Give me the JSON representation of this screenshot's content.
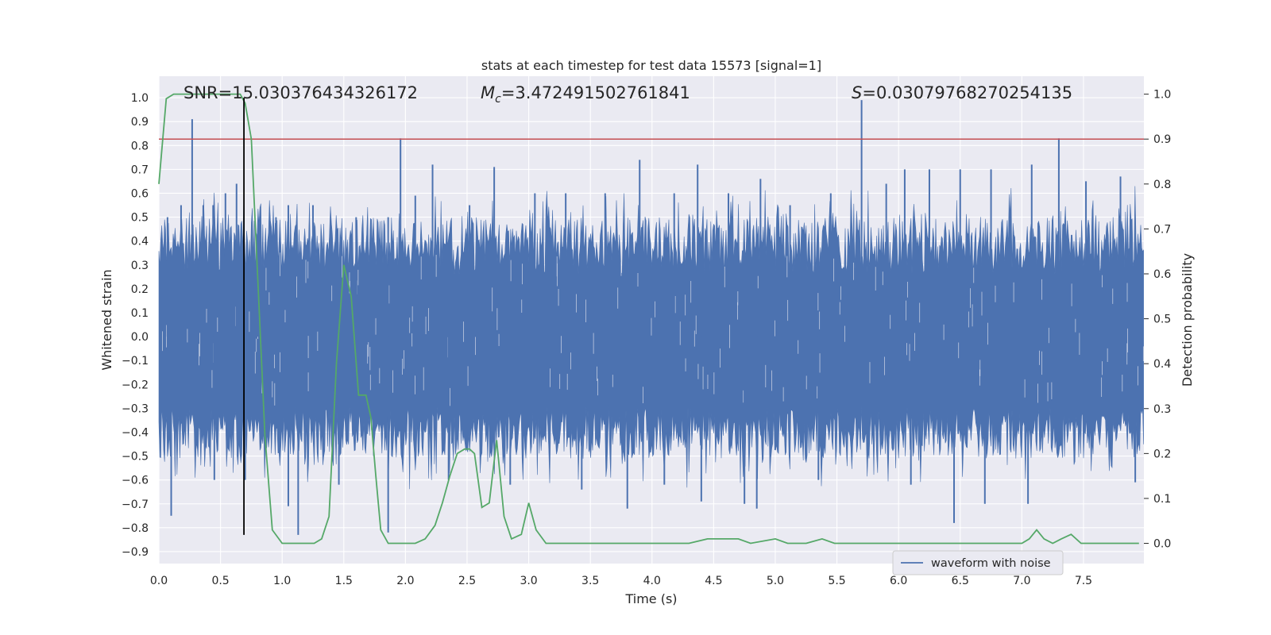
{
  "chart_data": {
    "type": "line",
    "title": "stats at each timestep for test data 15573 [signal=1]",
    "xlabel": "Time (s)",
    "ylabel_left": "Whitened strain",
    "ylabel_right": "Detection probability",
    "xlim": [
      0.0,
      7.99
    ],
    "ylim_left": [
      -0.95,
      1.09
    ],
    "ylim_right": [
      -0.045,
      1.04
    ],
    "x_ticks": [
      "0.0",
      "0.5",
      "1.0",
      "1.5",
      "2.0",
      "2.5",
      "3.0",
      "3.5",
      "4.0",
      "4.5",
      "5.0",
      "5.5",
      "6.0",
      "6.5",
      "7.0",
      "7.5"
    ],
    "y_ticks_left": [
      "1.0",
      "0.9",
      "0.8",
      "0.7",
      "0.6",
      "0.5",
      "0.4",
      "0.3",
      "0.2",
      "0.1",
      "0.0",
      "−0.1",
      "−0.2",
      "−0.3",
      "−0.4",
      "−0.5",
      "−0.6",
      "−0.7",
      "−0.8",
      "−0.9"
    ],
    "y_ticks_right": [
      "1.0",
      "0.9",
      "0.8",
      "0.7",
      "0.6",
      "0.5",
      "0.4",
      "0.3",
      "0.2",
      "0.1",
      "0.0"
    ],
    "grid": true,
    "legend_position": "bottom-right",
    "legend": [
      "waveform with noise"
    ],
    "annotations": {
      "snr": "SNR=15.030376434326172",
      "mc_symbol": "M",
      "mc_sub": "c",
      "mc_value": "=3.472491502761841",
      "s_symbol": "S",
      "s_value": "=0.03079768270254135"
    },
    "threshold_detection_probability": 0.9,
    "marker_time_s": 0.69,
    "marker_strain_range": [
      -0.83,
      1.0
    ],
    "waveform": {
      "name": "waveform with noise",
      "color": "#4c72b0",
      "noise_band": [
        -0.29,
        0.26
      ],
      "peaks": [
        {
          "t": 0.07,
          "v": 0.5
        },
        {
          "t": 0.18,
          "v": 0.55
        },
        {
          "t": 0.27,
          "v": 0.91
        },
        {
          "t": 0.36,
          "v": 0.55
        },
        {
          "t": 0.44,
          "v": 0.55
        },
        {
          "t": 0.54,
          "v": 0.6
        },
        {
          "t": 0.63,
          "v": 0.64
        },
        {
          "t": 0.8,
          "v": 0.43
        },
        {
          "t": 0.95,
          "v": 0.5
        },
        {
          "t": 1.05,
          "v": 0.55
        },
        {
          "t": 1.25,
          "v": 0.55
        },
        {
          "t": 1.6,
          "v": 0.5
        },
        {
          "t": 1.86,
          "v": 0.5
        },
        {
          "t": 1.96,
          "v": 0.83
        },
        {
          "t": 2.08,
          "v": 0.59
        },
        {
          "t": 2.22,
          "v": 0.72
        },
        {
          "t": 2.52,
          "v": 0.55
        },
        {
          "t": 2.72,
          "v": 0.71
        },
        {
          "t": 3.05,
          "v": 0.6
        },
        {
          "t": 3.3,
          "v": 0.6
        },
        {
          "t": 3.62,
          "v": 0.6
        },
        {
          "t": 3.9,
          "v": 0.74
        },
        {
          "t": 4.18,
          "v": 0.6
        },
        {
          "t": 4.37,
          "v": 0.72
        },
        {
          "t": 4.62,
          "v": 0.6
        },
        {
          "t": 4.88,
          "v": 0.66
        },
        {
          "t": 5.12,
          "v": 0.55
        },
        {
          "t": 5.45,
          "v": 0.6
        },
        {
          "t": 5.7,
          "v": 0.99
        },
        {
          "t": 5.9,
          "v": 0.64
        },
        {
          "t": 6.05,
          "v": 0.7
        },
        {
          "t": 6.25,
          "v": 0.7
        },
        {
          "t": 6.5,
          "v": 0.7
        },
        {
          "t": 6.75,
          "v": 0.7
        },
        {
          "t": 7.08,
          "v": 0.72
        },
        {
          "t": 7.3,
          "v": 0.83
        },
        {
          "t": 7.52,
          "v": 0.65
        },
        {
          "t": 7.8,
          "v": 0.67
        }
      ],
      "troughs": [
        {
          "t": 0.1,
          "v": -0.75
        },
        {
          "t": 0.45,
          "v": -0.6
        },
        {
          "t": 0.7,
          "v": -0.6
        },
        {
          "t": 1.05,
          "v": -0.71
        },
        {
          "t": 1.13,
          "v": -0.83
        },
        {
          "t": 1.46,
          "v": -0.62
        },
        {
          "t": 1.86,
          "v": -0.82
        },
        {
          "t": 2.35,
          "v": -0.6
        },
        {
          "t": 2.85,
          "v": -0.62
        },
        {
          "t": 3.43,
          "v": -0.64
        },
        {
          "t": 3.8,
          "v": -0.72
        },
        {
          "t": 4.1,
          "v": -0.62
        },
        {
          "t": 4.4,
          "v": -0.69
        },
        {
          "t": 4.75,
          "v": -0.7
        },
        {
          "t": 4.85,
          "v": -0.72
        },
        {
          "t": 5.35,
          "v": -0.6
        },
        {
          "t": 6.1,
          "v": -0.62
        },
        {
          "t": 6.45,
          "v": -0.78
        },
        {
          "t": 6.7,
          "v": -0.7
        },
        {
          "t": 7.05,
          "v": -0.7
        },
        {
          "t": 7.92,
          "v": -0.61
        }
      ]
    },
    "detection_probability": {
      "color": "#55a868",
      "x": [
        0.0,
        0.06,
        0.12,
        0.2,
        0.3,
        0.4,
        0.5,
        0.6,
        0.66,
        0.7,
        0.75,
        0.8,
        0.86,
        0.92,
        1.0,
        1.08,
        1.18,
        1.26,
        1.32,
        1.38,
        1.44,
        1.5,
        1.56,
        1.62,
        1.68,
        1.72,
        1.76,
        1.8,
        1.86,
        1.92,
        2.0,
        2.08,
        2.16,
        2.24,
        2.3,
        2.36,
        2.42,
        2.48,
        2.52,
        2.56,
        2.62,
        2.68,
        2.74,
        2.8,
        2.86,
        2.94,
        3.0,
        3.06,
        3.14,
        3.3,
        3.5,
        3.7,
        3.9,
        4.1,
        4.3,
        4.45,
        4.6,
        4.7,
        4.8,
        5.0,
        5.1,
        5.25,
        5.38,
        5.48,
        5.65,
        5.8,
        5.95,
        6.1,
        6.25,
        6.4,
        6.55,
        6.7,
        6.85,
        7.0,
        7.06,
        7.12,
        7.18,
        7.25,
        7.32,
        7.4,
        7.48,
        7.6,
        7.75,
        7.95
      ],
      "y": [
        0.8,
        0.99,
        1.0,
        1.0,
        1.0,
        1.0,
        1.0,
        1.0,
        1.0,
        0.98,
        0.9,
        0.6,
        0.24,
        0.03,
        0.0,
        0.0,
        0.0,
        0.0,
        0.01,
        0.06,
        0.4,
        0.62,
        0.55,
        0.33,
        0.33,
        0.28,
        0.15,
        0.03,
        0.0,
        0.0,
        0.0,
        0.0,
        0.01,
        0.04,
        0.09,
        0.15,
        0.2,
        0.21,
        0.21,
        0.2,
        0.08,
        0.09,
        0.23,
        0.06,
        0.01,
        0.02,
        0.09,
        0.03,
        0.0,
        0.0,
        0.0,
        0.0,
        0.0,
        0.0,
        0.0,
        0.01,
        0.01,
        0.01,
        0.0,
        0.01,
        0.0,
        0.0,
        0.01,
        0.0,
        0.0,
        0.0,
        0.0,
        0.0,
        0.0,
        0.0,
        0.0,
        0.0,
        0.0,
        0.0,
        0.01,
        0.03,
        0.01,
        0.0,
        0.01,
        0.02,
        0.0,
        0.0,
        0.0,
        0.0
      ]
    }
  }
}
